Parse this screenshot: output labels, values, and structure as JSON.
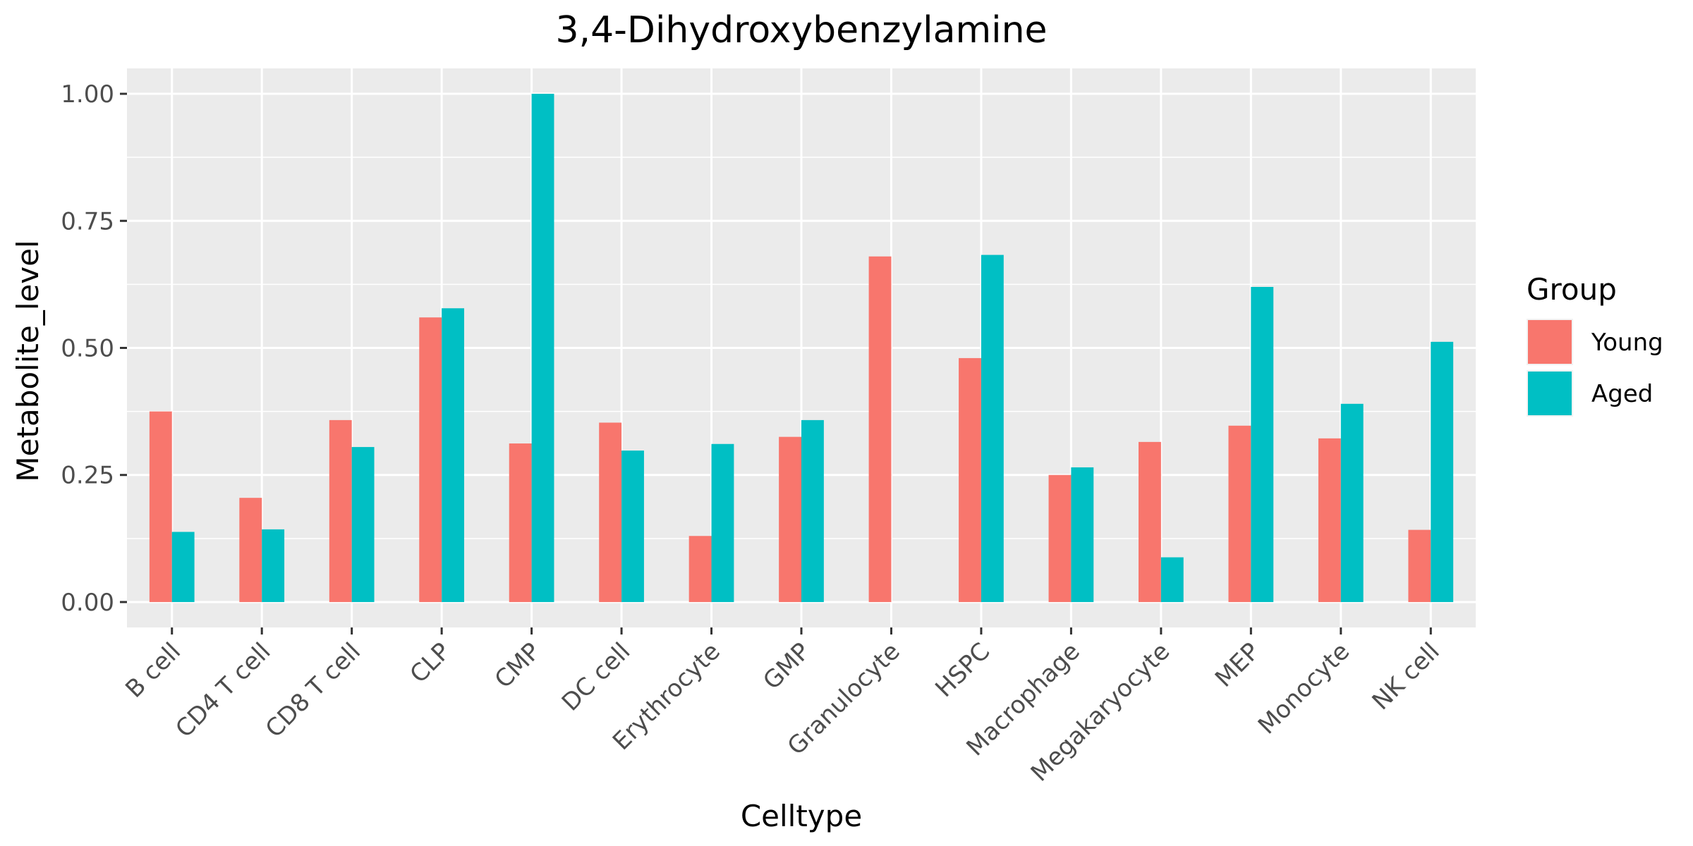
{
  "chart_data": {
    "type": "bar",
    "title": "3,4-Dihydroxybenzylamine",
    "xlabel": "Celltype",
    "ylabel": "Metabolite_level",
    "ylim": [
      -0.05,
      1.05
    ],
    "yticks": [
      0.0,
      0.25,
      0.5,
      0.75,
      1.0
    ],
    "ytick_labels": [
      "0.00",
      "0.25",
      "0.50",
      "0.75",
      "1.00"
    ],
    "grid": true,
    "legend": {
      "title": "Group",
      "position": "right"
    },
    "categories": [
      "B cell",
      "CD4 T cell",
      "CD8 T cell",
      "CLP",
      "CMP",
      "DC cell",
      "Erythrocyte",
      "GMP",
      "Granulocyte",
      "HSPC",
      "Macrophage",
      "Megakaryocyte",
      "MEP",
      "Monocyte",
      "NK cell"
    ],
    "series": [
      {
        "name": "Young",
        "color": "#F8766D",
        "values": [
          0.375,
          0.205,
          0.358,
          0.56,
          0.312,
          0.353,
          0.13,
          0.325,
          0.68,
          0.48,
          0.25,
          0.315,
          0.347,
          0.322,
          0.142
        ]
      },
      {
        "name": "Aged",
        "color": "#00BFC4",
        "values": [
          0.138,
          0.143,
          0.305,
          0.578,
          1.0,
          0.298,
          0.311,
          0.358,
          0.0,
          0.683,
          0.265,
          0.088,
          0.62,
          0.39,
          0.512
        ]
      }
    ]
  }
}
